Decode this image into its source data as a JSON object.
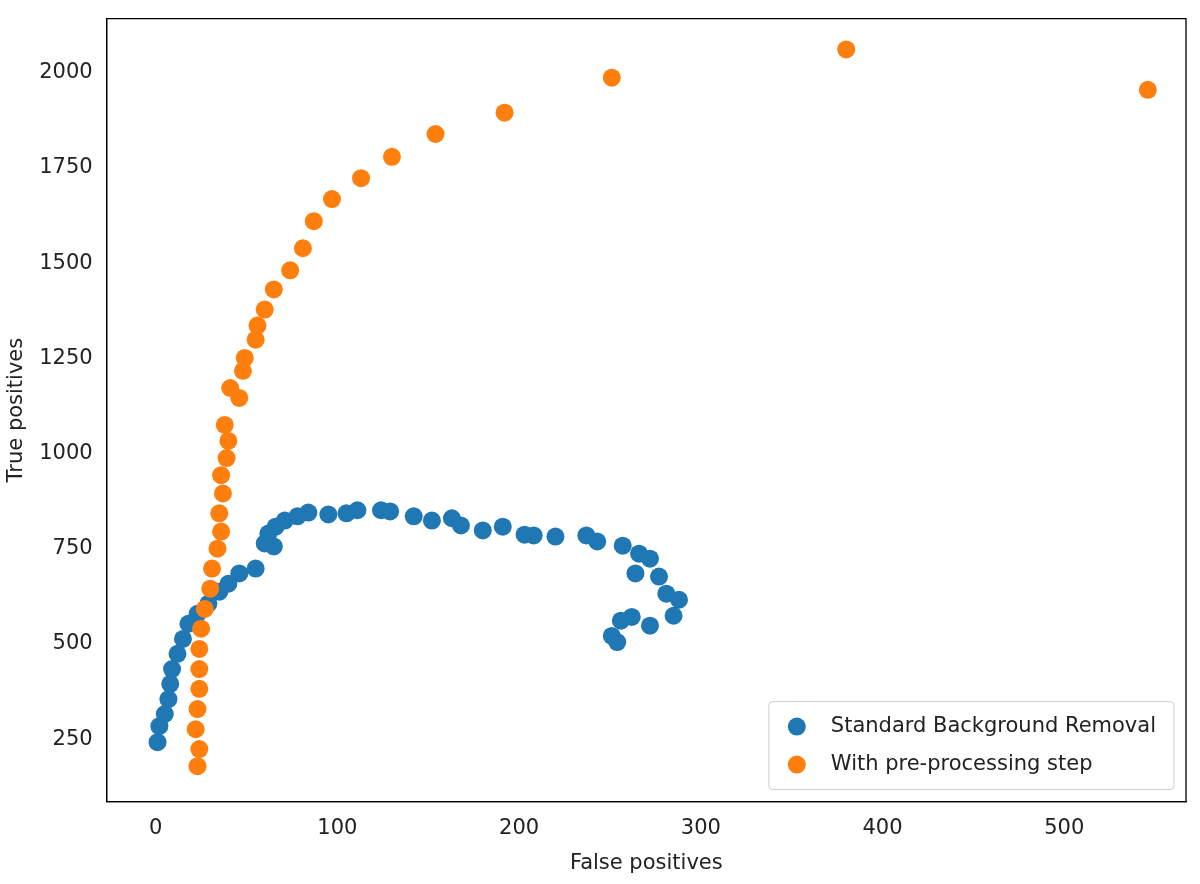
{
  "chart_data": {
    "type": "scatter",
    "xlabel": "False positives",
    "ylabel": "True positives",
    "xlim": [
      -27,
      567
    ],
    "ylim": [
      86,
      2142
    ],
    "xticks": [
      0,
      100,
      200,
      300,
      400,
      500
    ],
    "yticks": [
      250,
      500,
      750,
      1000,
      1250,
      1500,
      1750,
      2000
    ],
    "grid": false,
    "legend": "bottom right",
    "marker": "circle",
    "series": [
      {
        "name": "Standard Background Removal",
        "color": "#1f77b4",
        "x": [
          1,
          2,
          5,
          7,
          8,
          9,
          12,
          15,
          18,
          23,
          29,
          35,
          40,
          46,
          55,
          65,
          60,
          62,
          66,
          71,
          78,
          84,
          95,
          105,
          111,
          124,
          129,
          142,
          152,
          163,
          168,
          180,
          191,
          203,
          208,
          220,
          237,
          243,
          257,
          266,
          272,
          264,
          277,
          281,
          288,
          285,
          272,
          262,
          256,
          251,
          254
        ],
        "values": [
          242,
          284,
          316,
          355,
          395,
          434,
          474,
          513,
          553,
          579,
          606,
          637,
          658,
          685,
          698,
          756,
          764,
          790,
          808,
          824,
          835,
          845,
          840,
          843,
          851,
          851,
          848,
          835,
          824,
          830,
          811,
          798,
          808,
          787,
          785,
          782,
          785,
          769,
          758,
          737,
          724,
          685,
          677,
          632,
          616,
          574,
          548,
          571,
          561,
          521,
          505
        ]
      },
      {
        "name": "With pre-processing step",
        "color": "#ff7f0e",
        "x": [
          23,
          24,
          22,
          23,
          24,
          24,
          24,
          25,
          27,
          30,
          31,
          34,
          36,
          35,
          37,
          36,
          39,
          40,
          38,
          46,
          41,
          48,
          49,
          55,
          56,
          60,
          65,
          74,
          81,
          87,
          97,
          113,
          130,
          154,
          192,
          251,
          380,
          546
        ],
        "values": [
          179,
          224,
          276,
          329,
          382,
          434,
          487,
          540,
          592,
          645,
          698,
          750,
          795,
          843,
          895,
          943,
          988,
          1033,
          1075,
          1146,
          1172,
          1217,
          1251,
          1299,
          1336,
          1378,
          1431,
          1481,
          1539,
          1610,
          1668,
          1723,
          1779,
          1839,
          1895,
          1987,
          2061,
          1955
        ]
      }
    ]
  }
}
